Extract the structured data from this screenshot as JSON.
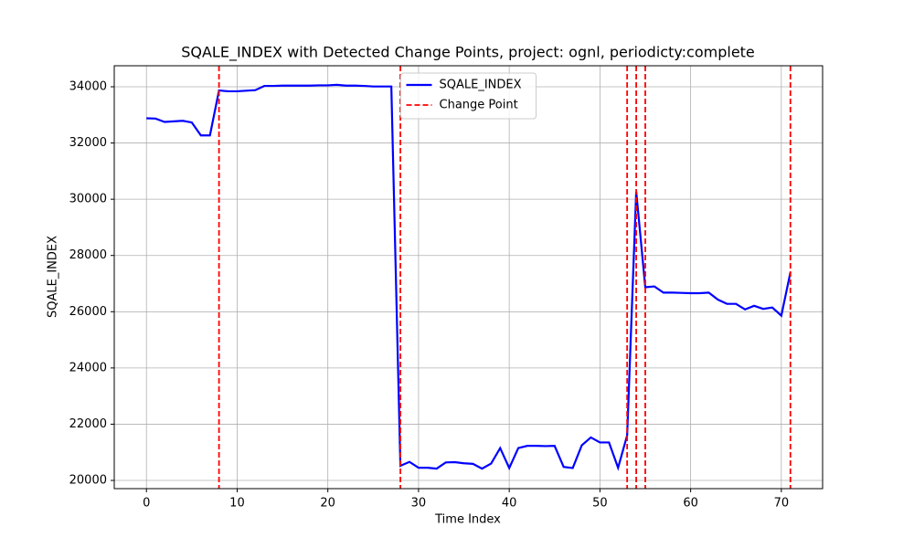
{
  "chart_data": {
    "type": "line",
    "title": "SQALE_INDEX with Detected Change Points, project: ognl, periodicty:complete",
    "x_label": "Time Index",
    "y_label": "SQALE_INDEX",
    "x": [
      0,
      1,
      2,
      3,
      4,
      5,
      6,
      7,
      8,
      9,
      10,
      11,
      12,
      13,
      14,
      15,
      16,
      17,
      18,
      19,
      20,
      21,
      22,
      23,
      24,
      25,
      26,
      27,
      28,
      29,
      30,
      31,
      32,
      33,
      34,
      35,
      36,
      37,
      38,
      39,
      40,
      41,
      42,
      43,
      44,
      45,
      46,
      47,
      48,
      49,
      50,
      51,
      52,
      53,
      54,
      55,
      56,
      57,
      58,
      59,
      60,
      61,
      62,
      63,
      64,
      65,
      66,
      67,
      68,
      69,
      70,
      71
    ],
    "series": [
      {
        "name": "SQALE_INDEX",
        "color": "#0000ff",
        "values": [
          32880,
          32870,
          32750,
          32770,
          32790,
          32730,
          32270,
          32270,
          33870,
          33840,
          33840,
          33860,
          33880,
          34030,
          34030,
          34040,
          34040,
          34040,
          34040,
          34050,
          34050,
          34070,
          34040,
          34040,
          34030,
          34010,
          34010,
          34010,
          20520,
          20660,
          20450,
          20450,
          20420,
          20640,
          20650,
          20610,
          20590,
          20420,
          20600,
          21150,
          20440,
          21150,
          21230,
          21230,
          21220,
          21230,
          20480,
          20440,
          21250,
          21530,
          21350,
          21350,
          20450,
          21600,
          30270,
          26870,
          26900,
          26680,
          26680,
          26670,
          26660,
          26660,
          26680,
          26430,
          26280,
          26280,
          26080,
          26210,
          26100,
          26150,
          25860,
          27400
        ]
      }
    ],
    "change_points": {
      "name": "Change Point",
      "color": "#ff0000",
      "values": [
        8,
        28,
        53,
        54,
        55,
        71
      ]
    },
    "xlim": [
      -3.55,
      74.55
    ],
    "xticks": [
      0,
      10,
      20,
      30,
      40,
      50,
      60,
      70
    ],
    "ylim": [
      19708,
      34747
    ],
    "yticks": [
      20000,
      22000,
      24000,
      26000,
      28000,
      30000,
      32000,
      34000
    ],
    "grid": true,
    "legend": "upper center"
  }
}
